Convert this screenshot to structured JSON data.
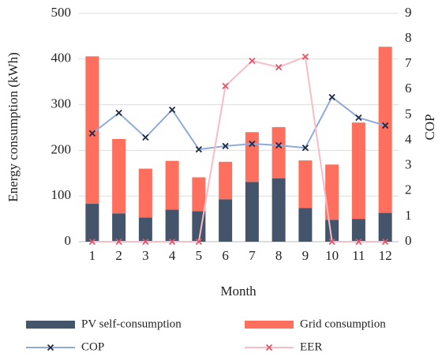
{
  "chart_data": {
    "type": "bar",
    "stacked": true,
    "xlabel": "Month",
    "ylabel": "Energy consumption (kWh)",
    "y2label": "COP",
    "categories": [
      "1",
      "2",
      "3",
      "4",
      "5",
      "6",
      "7",
      "8",
      "9",
      "10",
      "11",
      "12"
    ],
    "series": [
      {
        "name": "PV self-consumption",
        "type": "bar",
        "color": "#44546a",
        "values": [
          83,
          62,
          53,
          70,
          67,
          93,
          131,
          139,
          74,
          48,
          50,
          63
        ]
      },
      {
        "name": "Grid consumption",
        "type": "bar",
        "color": "#fe6f5e",
        "values": [
          323,
          163,
          107,
          107,
          74,
          82,
          109,
          112,
          104,
          121,
          211,
          364
        ]
      },
      {
        "name": "COP",
        "type": "line",
        "axis": "y2",
        "color": "#8eaadb",
        "marker_color": "#1f2a44",
        "values": [
          4.27,
          5.08,
          4.11,
          5.2,
          3.64,
          3.77,
          3.86,
          3.8,
          3.7,
          5.7,
          4.89,
          4.58
        ]
      },
      {
        "name": "EER",
        "type": "line",
        "axis": "y2",
        "color": "#f7bcc6",
        "marker_color": "#e0566a",
        "values": [
          0,
          0,
          0,
          0,
          0,
          6.14,
          7.13,
          6.88,
          7.29,
          0,
          0,
          0
        ]
      }
    ],
    "ylim": [
      0,
      500
    ],
    "yticks": [
      0,
      100,
      200,
      300,
      400,
      500
    ],
    "y2lim": [
      0,
      9
    ],
    "y2ticks": [
      0,
      1,
      2,
      3,
      4,
      5,
      6,
      7,
      8,
      9
    ],
    "grid": true,
    "legend": "bottom"
  }
}
